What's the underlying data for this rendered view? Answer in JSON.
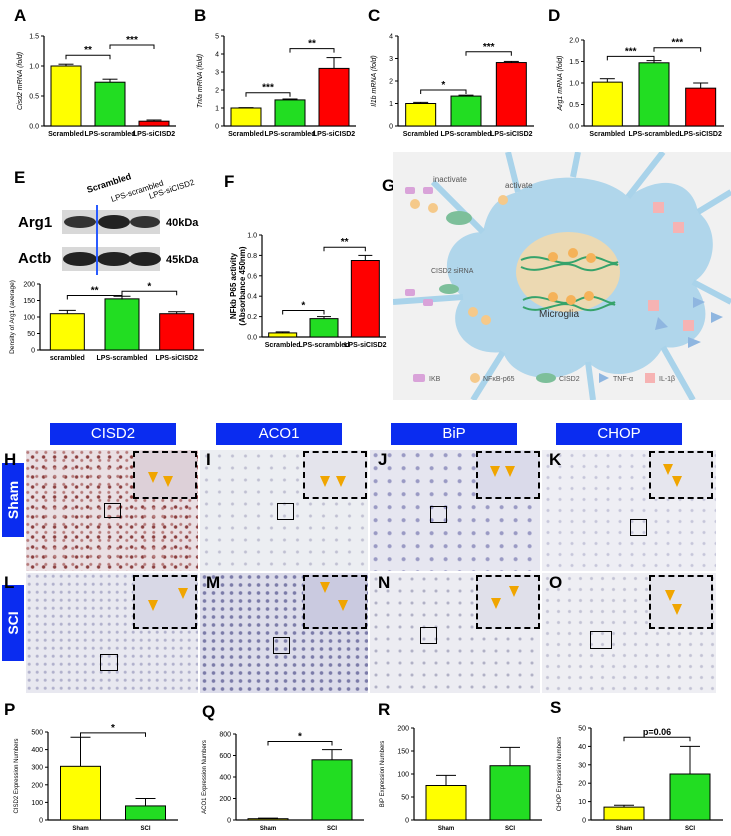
{
  "letters": {
    "A": "A",
    "B": "B",
    "C": "C",
    "D": "D",
    "E": "E",
    "F": "F",
    "G": "G",
    "H": "H",
    "I": "I",
    "J": "J",
    "K": "K",
    "L": "L",
    "M": "M",
    "N": "N",
    "O": "O",
    "P": "P",
    "Q": "Q",
    "R": "R",
    "S": "S"
  },
  "colors": {
    "yellow": "#ffff00",
    "green": "#22dd22",
    "red": "#ff0000",
    "blue": "#0a2cf0",
    "lightblue": "#a9d3ea"
  },
  "significance": {
    "ns2": "**",
    "ns3": "***",
    "ns1": "*",
    "p06": "p=0.06"
  },
  "chartA": {
    "type": "bar",
    "ylabel": "Cisd2 mRNA (fold)",
    "categories": [
      "Scrambled",
      "LPS-scrambled",
      "LPS-siCISD2"
    ],
    "values": [
      1.0,
      0.73,
      0.08
    ],
    "errors": [
      0.03,
      0.05,
      0.02
    ],
    "ylim": [
      0,
      1.5
    ],
    "ticks": [
      "0.0",
      "0.5",
      "1.0",
      "1.5"
    ],
    "tickvals": [
      0,
      0.5,
      1.0,
      1.5
    ]
  },
  "chartB": {
    "type": "bar",
    "ylabel": "Tnfa mRNA (fold)",
    "categories": [
      "Scrambled",
      "LPS-scrambled",
      "LPS-siCISD2"
    ],
    "values": [
      1.0,
      1.45,
      3.2
    ],
    "errors": [
      0.02,
      0.05,
      0.6
    ],
    "ylim": [
      0,
      5
    ],
    "ticks": [
      "0",
      "1",
      "2",
      "3",
      "4",
      "5"
    ],
    "tickvals": [
      0,
      1,
      2,
      3,
      4,
      5
    ]
  },
  "chartC": {
    "type": "bar",
    "ylabel": "Il1b mRNA (fold)",
    "categories": [
      "Scrambled",
      "LPS-scrambled",
      "LPS-siCISD2"
    ],
    "values": [
      1.0,
      1.33,
      2.82
    ],
    "errors": [
      0.05,
      0.04,
      0.05
    ],
    "ylim": [
      0,
      4
    ],
    "ticks": [
      "0",
      "1",
      "2",
      "3",
      "4"
    ],
    "tickvals": [
      0,
      1,
      2,
      3,
      4
    ]
  },
  "chartD": {
    "type": "bar",
    "ylabel": "Arg1 mRNA (fold)",
    "categories": [
      "Scrambled",
      "LPS-scrambled",
      "LPS-siCISD2"
    ],
    "values": [
      1.02,
      1.47,
      0.88
    ],
    "errors": [
      0.08,
      0.05,
      0.12
    ],
    "ylim": [
      0,
      2.0
    ],
    "ticks": [
      "0.0",
      "0.5",
      "1.0",
      "1.5",
      "2.0"
    ],
    "tickvals": [
      0,
      0.5,
      1.0,
      1.5,
      2.0
    ]
  },
  "chartE": {
    "type": "bar",
    "ylabel": "Density of Arg1 (average)",
    "categories": [
      "scrambled",
      "LPS-scrambled",
      "LPS-siCISD2"
    ],
    "values": [
      110,
      155,
      110
    ],
    "errors": [
      10,
      8,
      6
    ],
    "ylim": [
      0,
      200
    ],
    "ticks": [
      "0",
      "50",
      "100",
      "150",
      "200"
    ],
    "tickvals": [
      0,
      50,
      100,
      150,
      200
    ]
  },
  "chartF": {
    "type": "bar",
    "ylabel": "NFkb P65 activity (Absorbance 450nm)",
    "categories": [
      "Scrambled",
      "LPS-scrambled",
      "LPS-siCISD2"
    ],
    "values": [
      0.04,
      0.18,
      0.75
    ],
    "errors": [
      0.01,
      0.02,
      0.05
    ],
    "ylim": [
      0,
      1.0
    ],
    "ticks": [
      "0.0",
      "0.2",
      "0.4",
      "0.6",
      "0.8",
      "1.0"
    ],
    "tickvals": [
      0,
      0.2,
      0.4,
      0.6,
      0.8,
      1.0
    ]
  },
  "chartP": {
    "type": "bar",
    "ylabel": "CISD2 Expression Numbers",
    "categories": [
      "Sham",
      "SCI"
    ],
    "values": [
      305,
      80
    ],
    "errors": [
      165,
      42
    ],
    "ylim": [
      0,
      500
    ],
    "ticks": [
      "0",
      "100",
      "200",
      "300",
      "400",
      "500"
    ],
    "tickvals": [
      0,
      100,
      200,
      300,
      400,
      500
    ]
  },
  "chartQ": {
    "type": "bar",
    "ylabel": "ACO1 Expression Numbers",
    "categories": [
      "Sham",
      "SCI"
    ],
    "values": [
      12,
      560
    ],
    "errors": [
      5,
      95
    ],
    "ylim": [
      0,
      800
    ],
    "ticks": [
      "0",
      "200",
      "400",
      "600",
      "800"
    ],
    "tickvals": [
      0,
      200,
      400,
      600,
      800
    ]
  },
  "chartR": {
    "type": "bar",
    "ylabel": "BiP Expression Numbers",
    "categories": [
      "Sham",
      "SCI"
    ],
    "values": [
      75,
      118
    ],
    "errors": [
      22,
      40
    ],
    "ylim": [
      0,
      200
    ],
    "ticks": [
      "0",
      "50",
      "100",
      "150",
      "200"
    ],
    "tickvals": [
      0,
      50,
      100,
      150,
      200
    ]
  },
  "chartS": {
    "type": "bar",
    "ylabel": "CHOP Expression Numbers",
    "categories": [
      "Sham",
      "SCI"
    ],
    "values": [
      7,
      25
    ],
    "errors": [
      1,
      15
    ],
    "ylim": [
      0,
      50
    ],
    "ticks": [
      "0",
      "10",
      "20",
      "30",
      "40",
      "50"
    ],
    "tickvals": [
      0,
      10,
      20,
      30,
      40,
      50
    ]
  },
  "blot": {
    "lanes": [
      "Scrambled",
      "LPS-scrambled",
      "LPS-siCISD2"
    ],
    "rows": [
      "Arg1",
      "Actb"
    ],
    "sizes": [
      "40kDa",
      "45kDa"
    ]
  },
  "diagram": {
    "inactivate": "inactivate",
    "activate": "activate",
    "sirna": "CISD2 siRNA",
    "microglia": "Microglia",
    "legend": [
      "IKB",
      "NFκB-p65",
      "CISD2",
      "TNF-α",
      "IL-1β"
    ]
  },
  "stains": {
    "headers": [
      "CISD2",
      "ACO1",
      "BiP",
      "CHOP"
    ],
    "rows": [
      "Sham",
      "SCI"
    ]
  }
}
